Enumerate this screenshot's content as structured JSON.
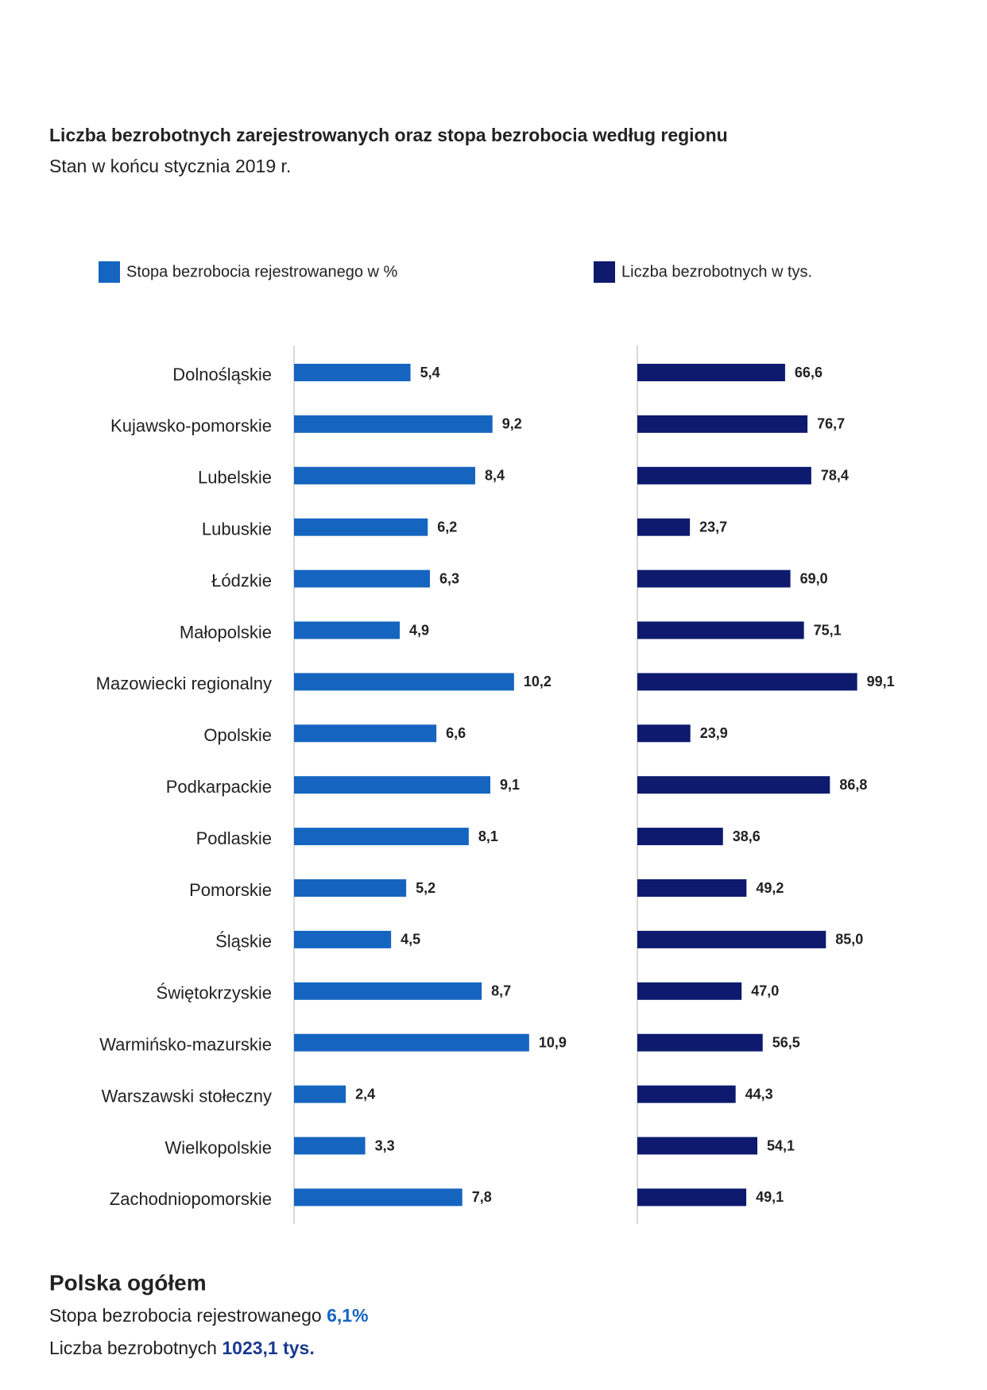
{
  "chart_data": {
    "type": "bar",
    "title": "Liczba bezrobotnych zarejestrowanych oraz stopa bezrobocia według regionu",
    "subtitle": "Stan w końcu stycznia 2019 r.",
    "categories": [
      "Dolnośląskie",
      "Kujawsko-pomorskie",
      "Lubelskie",
      "Lubuskie",
      "Łódzkie",
      "Małopolskie",
      "Mazowiecki regionalny",
      "Opolskie",
      "Podkarpackie",
      "Podlaskie",
      "Pomorskie",
      "Śląskie",
      "Świętokrzyskie",
      "Warmińsko-mazurskie",
      "Warszawski stołeczny",
      "Wielkopolskie",
      "Zachodniopomorskie"
    ],
    "series": [
      {
        "name": "Stopa bezrobocia rejestrowanego w %",
        "color": "#1565c0",
        "xlim": [
          0,
          14
        ],
        "values": [
          5.4,
          9.2,
          8.4,
          6.2,
          6.3,
          4.9,
          10.2,
          6.6,
          9.1,
          8.1,
          5.2,
          4.5,
          8.7,
          10.9,
          2.4,
          3.3,
          7.8
        ],
        "value_labels": [
          "5,4",
          "9,2",
          "8,4",
          "6,2",
          "6,3",
          "4,9",
          "10,2",
          "6,6",
          "9,1",
          "8,1",
          "5,2",
          "4,5",
          "8,7",
          "10,9",
          "2,4",
          "3,3",
          "7,8"
        ]
      },
      {
        "name": "Liczba bezrobotnych w tys.",
        "color": "#0d1a6e",
        "xlim": [
          0,
          120
        ],
        "values": [
          66.6,
          76.7,
          78.4,
          23.7,
          69.0,
          75.1,
          99.1,
          23.9,
          86.8,
          38.6,
          49.2,
          85.0,
          47.0,
          56.5,
          44.3,
          54.1,
          49.1
        ],
        "value_labels": [
          "66,6",
          "76,7",
          "78,4",
          "23,7",
          "69,0",
          "75,1",
          "99,1",
          "23,9",
          "86,8",
          "38,6",
          "49,2",
          "85,0",
          "47,0",
          "56,5",
          "44,3",
          "54,1",
          "49,1"
        ]
      }
    ]
  },
  "summary": {
    "title": "Polska ogółem",
    "lines": [
      {
        "label": "Stopa bezrobocia rejestrowanego",
        "value": "6,1%",
        "color": "#1565c0"
      },
      {
        "label": "Liczba bezrobotnych",
        "value": "1023,1 tys.",
        "color": "#1a3a8f"
      }
    ]
  }
}
